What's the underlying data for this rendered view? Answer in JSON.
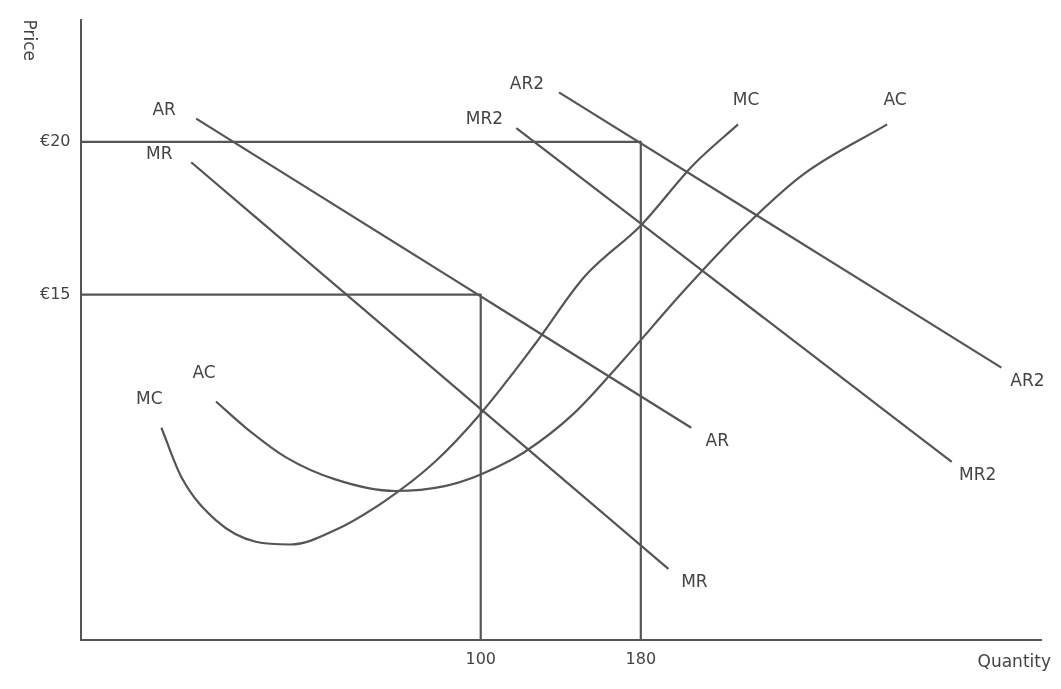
{
  "chart_data": {
    "type": "line",
    "xlabel": "Quantity",
    "ylabel": "Price",
    "xlim": [
      -100,
      380
    ],
    "ylim": [
      3.7,
      24
    ],
    "xticks": [
      100,
      180
    ],
    "yticks": [
      {
        "value": 15,
        "label": "€15"
      },
      {
        "value": 20,
        "label": "€20"
      }
    ],
    "grid": false,
    "legend": false,
    "series": [
      {
        "name": "AR",
        "color": "#555555",
        "x": [
          -42.2,
          205.2
        ],
        "values": [
          20.76,
          10.64
        ]
      },
      {
        "name": "MR",
        "color": "#555555",
        "x": [
          -44.7,
          193.8
        ],
        "values": [
          19.33,
          6.02
        ]
      },
      {
        "name": "AR2",
        "color": "#555555",
        "x": [
          139.1,
          360.2
        ],
        "values": [
          21.62,
          12.61
        ]
      },
      {
        "name": "MR2",
        "color": "#555555",
        "x": [
          117.8,
          335.4
        ],
        "values": [
          20.45,
          9.52
        ]
      },
      {
        "name": "MC",
        "color": "#555555",
        "x": [
          -59.6,
          -49.7,
          -32.3,
          -12.4,
          5.0,
          27.3,
          52.2,
          77.0,
          100,
          126.7,
          151.6,
          180,
          206.2,
          228.6
        ],
        "values": [
          10.64,
          9.04,
          7.61,
          6.91,
          6.82,
          7.29,
          8.25,
          9.52,
          11.11,
          13.34,
          15.57,
          17.26,
          19.24,
          20.57
        ]
      },
      {
        "name": "AC",
        "color": "#555555",
        "x": [
          -32.3,
          -17.4,
          2.5,
          27.3,
          57.1,
          82.0,
          100,
          121.7,
          146.6,
          171.4,
          201.2,
          231.1,
          260.9,
          303.1
        ],
        "values": [
          11.5,
          10.64,
          9.68,
          8.95,
          8.57,
          8.73,
          9.11,
          9.84,
          11.11,
          12.87,
          15.1,
          17.17,
          18.92,
          20.57
        ]
      },
      {
        "color": "#555555",
        "x": [
          -100,
          180,
          180
        ],
        "values": [
          20,
          20,
          3.7
        ]
      },
      {
        "color": "#555555",
        "x": [
          -100,
          100,
          100
        ],
        "values": [
          15,
          15,
          3.7
        ]
      }
    ]
  }
}
